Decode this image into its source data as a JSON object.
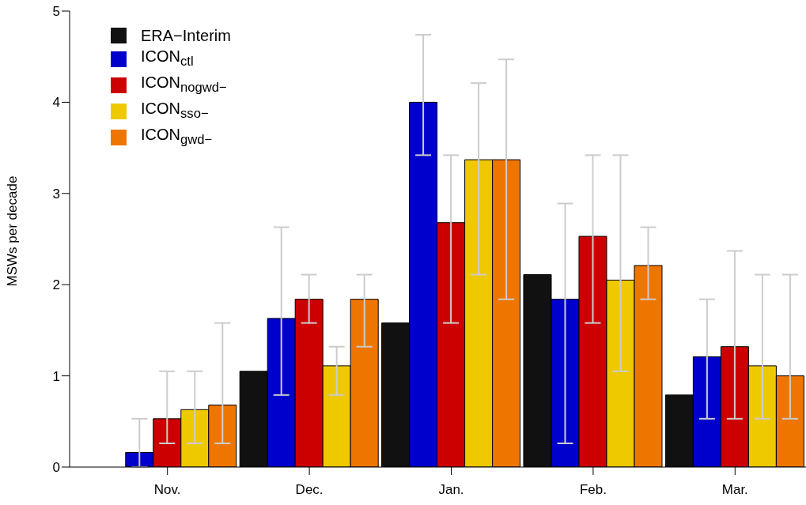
{
  "chart_data": {
    "type": "bar",
    "ylabel": "MSWs per decade",
    "categories": [
      "Nov.",
      "Dec.",
      "Jan.",
      "Feb.",
      "Mar."
    ],
    "ylim": [
      0,
      5
    ],
    "yticks": [
      0,
      1,
      2,
      3,
      4,
      5
    ],
    "grid": false,
    "legend": "top left",
    "series": [
      {
        "name": "ERA−Interim",
        "color": "#111111",
        "values": [
          0,
          1.05,
          1.58,
          2.11,
          0.79
        ]
      },
      {
        "name": "ICON$_{ctl}$",
        "color": "#0000cc",
        "values": [
          0.16,
          1.63,
          4.0,
          1.84,
          1.21
        ],
        "errors": [
          [
            0,
            0.53
          ],
          [
            0.79,
            2.63
          ],
          [
            3.42,
            4.74
          ],
          [
            0.26,
            2.89
          ],
          [
            0.53,
            1.84
          ]
        ]
      },
      {
        "name": "ICON$_{nogwd−}$",
        "color": "#cc0000",
        "values": [
          0.53,
          1.84,
          2.68,
          2.53,
          1.32
        ],
        "errors": [
          [
            0.26,
            1.05
          ],
          [
            1.58,
            2.11
          ],
          [
            1.58,
            3.42
          ],
          [
            1.58,
            3.42
          ],
          [
            0.53,
            2.37
          ]
        ]
      },
      {
        "name": "ICON$_{sso−}$",
        "color": "#eec900",
        "values": [
          0.63,
          1.11,
          3.37,
          2.05,
          1.11
        ],
        "errors": [
          [
            0.26,
            1.05
          ],
          [
            0.79,
            1.32
          ],
          [
            2.11,
            4.21
          ],
          [
            1.05,
            3.42
          ],
          [
            0.53,
            2.11
          ]
        ]
      },
      {
        "name": "ICON$_{gwd−}$",
        "color": "#ee7600",
        "values": [
          0.68,
          1.84,
          3.37,
          2.21,
          1.0
        ],
        "errors": [
          [
            0.26,
            1.58
          ],
          [
            1.32,
            2.11
          ],
          [
            1.84,
            4.47
          ],
          [
            1.84,
            2.63
          ],
          [
            0.53,
            2.11
          ]
        ]
      }
    ]
  }
}
